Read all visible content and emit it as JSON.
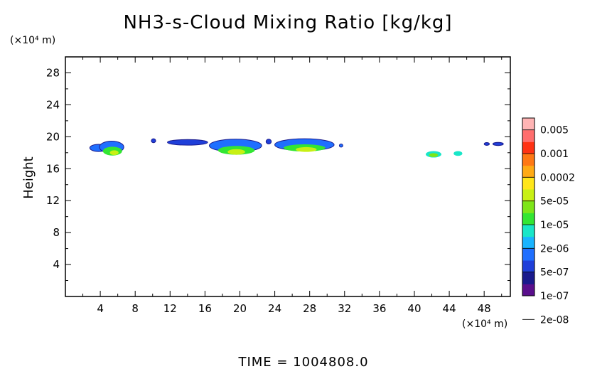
{
  "chart_data": {
    "type": "heatmap",
    "title": "NH3-s-Cloud Mixing Ratio [kg/kg]",
    "ylabel": "Height",
    "y_unit": "(×10⁴ m)",
    "x_unit": "(×10⁴ m)",
    "footer": "TIME = 1004808.0",
    "xlim": [
      0,
      51
    ],
    "ylim": [
      0,
      30
    ],
    "xticks": [
      "4",
      "8",
      "12",
      "16",
      "20",
      "24",
      "28",
      "32",
      "36",
      "40",
      "44",
      "48"
    ],
    "yticks": [
      "4",
      "8",
      "12",
      "16",
      "20",
      "24",
      "28"
    ],
    "colorbar": {
      "labels": [
        "0.005",
        "0.001",
        "0.0002",
        "5e-05",
        "1e-05",
        "2e-06",
        "5e-07",
        "1e-07",
        "2e-08"
      ],
      "colors": [
        "#5a0f8c",
        "#1a1a8c",
        "#1f3fd9",
        "#1f6fff",
        "#19b4ff",
        "#19e6c8",
        "#33e633",
        "#7ee619",
        "#c8f014",
        "#ffe61a",
        "#ffaa14",
        "#ff7814",
        "#ff3214",
        "#ff6e6e",
        "#ffb4b4"
      ]
    },
    "clouds": [
      {
        "x": 3.8,
        "y": 18.6,
        "rx": 1.0,
        "ry": 0.45,
        "level": 3
      },
      {
        "x": 5.3,
        "y": 18.7,
        "rx": 1.4,
        "ry": 0.75,
        "level": 3
      },
      {
        "x": 5.4,
        "y": 18.2,
        "rx": 1.1,
        "ry": 0.55,
        "level": 6
      },
      {
        "x": 5.6,
        "y": 18.0,
        "rx": 0.5,
        "ry": 0.3,
        "level": 8
      },
      {
        "x": 10.1,
        "y": 19.5,
        "rx": 0.25,
        "ry": 0.25,
        "level": 2
      },
      {
        "x": 14.0,
        "y": 19.3,
        "rx": 2.3,
        "ry": 0.35,
        "level": 2
      },
      {
        "x": 19.5,
        "y": 18.9,
        "rx": 3.0,
        "ry": 0.8,
        "level": 3
      },
      {
        "x": 19.6,
        "y": 18.3,
        "rx": 2.1,
        "ry": 0.55,
        "level": 6
      },
      {
        "x": 19.6,
        "y": 18.1,
        "rx": 1.0,
        "ry": 0.35,
        "level": 8
      },
      {
        "x": 23.3,
        "y": 19.4,
        "rx": 0.3,
        "ry": 0.3,
        "level": 2
      },
      {
        "x": 27.4,
        "y": 19.0,
        "rx": 3.4,
        "ry": 0.75,
        "level": 3
      },
      {
        "x": 27.4,
        "y": 18.6,
        "rx": 2.4,
        "ry": 0.45,
        "level": 6
      },
      {
        "x": 27.6,
        "y": 18.4,
        "rx": 1.2,
        "ry": 0.3,
        "level": 8
      },
      {
        "x": 31.6,
        "y": 18.9,
        "rx": 0.2,
        "ry": 0.2,
        "level": 3
      },
      {
        "x": 42.2,
        "y": 17.8,
        "rx": 0.9,
        "ry": 0.4,
        "level": 5
      },
      {
        "x": 42.2,
        "y": 17.7,
        "rx": 0.5,
        "ry": 0.25,
        "level": 7
      },
      {
        "x": 45.0,
        "y": 17.9,
        "rx": 0.5,
        "ry": 0.3,
        "level": 5
      },
      {
        "x": 48.3,
        "y": 19.1,
        "rx": 0.3,
        "ry": 0.15,
        "level": 2
      },
      {
        "x": 49.6,
        "y": 19.1,
        "rx": 0.6,
        "ry": 0.2,
        "level": 2
      }
    ]
  }
}
